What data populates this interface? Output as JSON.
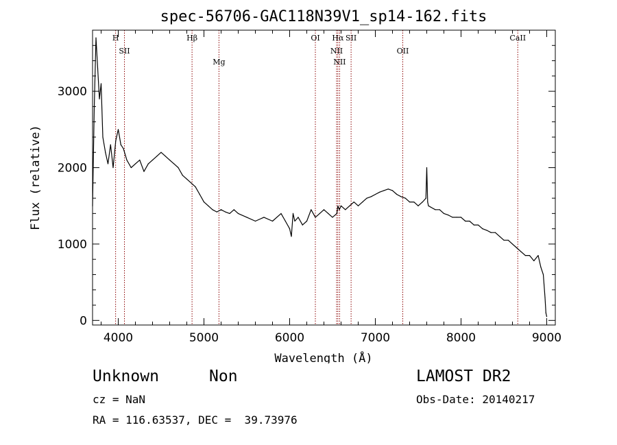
{
  "chart_data": {
    "type": "line",
    "title": "spec-56706-GAC118N39V1_sp14-162.fits",
    "xlabel": "Wavelength (Å)",
    "ylabel": "Flux (relative)",
    "xlim": [
      3700,
      9100
    ],
    "ylim": [
      -60,
      3800
    ],
    "x_ticks": [
      4000,
      5000,
      6000,
      7000,
      8000,
      9000
    ],
    "x_tick_labels": [
      "4000",
      "5000",
      "6000",
      "7000",
      "8000",
      "9000"
    ],
    "y_ticks": [
      0,
      1000,
      2000,
      3000
    ],
    "y_tick_labels": [
      "0",
      "1000",
      "2000",
      "3000"
    ],
    "grid": false,
    "series": [
      {
        "color": "#000000",
        "x": [
          3700,
          3720,
          3740,
          3760,
          3780,
          3800,
          3820,
          3850,
          3880,
          3910,
          3940,
          3970,
          4000,
          4030,
          4060,
          4100,
          4150,
          4200,
          4250,
          4300,
          4350,
          4400,
          4450,
          4500,
          4550,
          4600,
          4650,
          4700,
          4750,
          4800,
          4850,
          4900,
          4950,
          5000,
          5050,
          5100,
          5150,
          5200,
          5250,
          5300,
          5350,
          5400,
          5500,
          5600,
          5700,
          5800,
          5900,
          5950,
          6000,
          6020,
          6040,
          6060,
          6100,
          6150,
          6200,
          6250,
          6300,
          6350,
          6400,
          6450,
          6500,
          6550,
          6563,
          6580,
          6600,
          6650,
          6700,
          6750,
          6800,
          6850,
          6900,
          6950,
          7000,
          7050,
          7100,
          7150,
          7200,
          7250,
          7300,
          7350,
          7400,
          7450,
          7500,
          7550,
          7590,
          7600,
          7610,
          7620,
          7650,
          7700,
          7750,
          7800,
          7850,
          7900,
          7950,
          8000,
          8050,
          8100,
          8150,
          8200,
          8250,
          8300,
          8350,
          8400,
          8450,
          8500,
          8550,
          8600,
          8650,
          8700,
          8750,
          8800,
          8850,
          8900,
          8930,
          8960,
          8980,
          8990,
          9000
        ],
        "y": [
          1500,
          2800,
          3700,
          3300,
          2900,
          3100,
          2400,
          2200,
          2050,
          2300,
          2000,
          2350,
          2500,
          2300,
          2250,
          2100,
          2000,
          2050,
          2100,
          1950,
          2050,
          2100,
          2150,
          2200,
          2150,
          2100,
          2050,
          2000,
          1900,
          1850,
          1800,
          1750,
          1650,
          1550,
          1500,
          1450,
          1420,
          1450,
          1420,
          1400,
          1450,
          1400,
          1350,
          1300,
          1350,
          1300,
          1400,
          1300,
          1200,
          1100,
          1400,
          1300,
          1350,
          1250,
          1300,
          1450,
          1350,
          1400,
          1450,
          1400,
          1350,
          1400,
          1500,
          1450,
          1500,
          1450,
          1500,
          1550,
          1500,
          1550,
          1600,
          1620,
          1650,
          1680,
          1700,
          1720,
          1700,
          1650,
          1620,
          1600,
          1550,
          1550,
          1500,
          1550,
          1600,
          2000,
          1550,
          1500,
          1480,
          1450,
          1450,
          1400,
          1380,
          1350,
          1350,
          1350,
          1300,
          1300,
          1250,
          1250,
          1200,
          1180,
          1150,
          1150,
          1100,
          1050,
          1050,
          1000,
          950,
          900,
          850,
          850,
          780,
          850,
          700,
          600,
          300,
          100,
          50
        ]
      }
    ],
    "lines": [
      {
        "label": "H",
        "x": 3969
      },
      {
        "label": "SII",
        "x": 4072
      },
      {
        "label": "Hβ",
        "x": 4861
      },
      {
        "label": "Mg",
        "x": 5175
      },
      {
        "label": "OI",
        "x": 6300
      },
      {
        "label": "NII",
        "x": 6548
      },
      {
        "label": "Hα",
        "x": 6563
      },
      {
        "label": "NII",
        "x": 6583
      },
      {
        "label": "SII",
        "x": 6717
      },
      {
        "label": "OII",
        "x": 7320
      },
      {
        "label": "CaII",
        "x": 8662
      }
    ],
    "colors": {
      "spectrum": "#000000",
      "line_markers": "#8b0000"
    }
  },
  "footer": {
    "object_class": "Unknown",
    "object_subclass": "Non",
    "survey": "LAMOST DR2",
    "cz": "cz = NaN",
    "obs_date": "Obs-Date: 20140217",
    "radec": "RA = 116.63537, DEC =  39.73976"
  }
}
